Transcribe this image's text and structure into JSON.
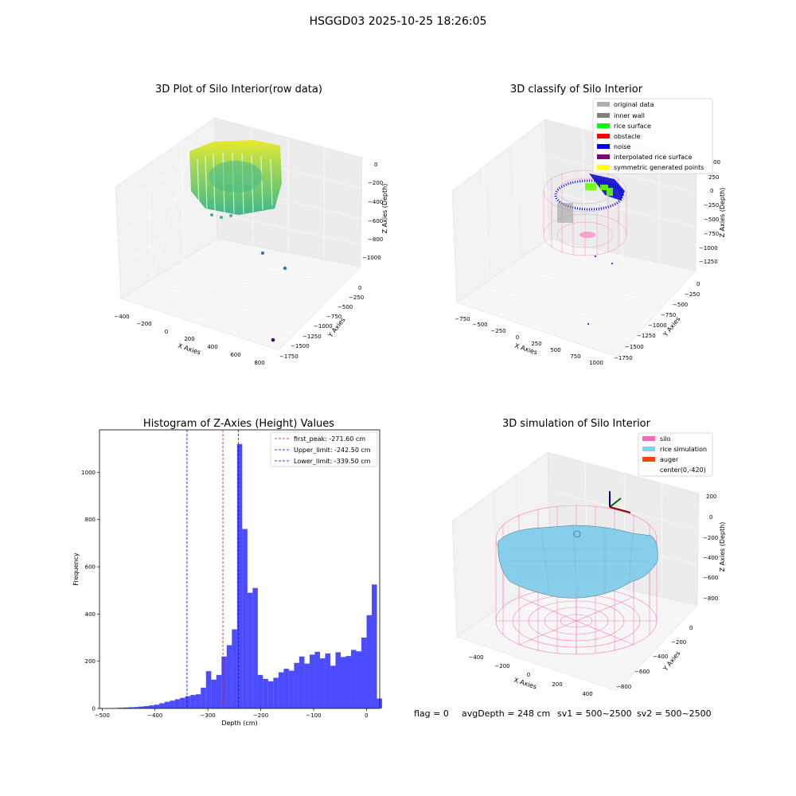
{
  "suptitle": "HSGGD03 2025-10-25 18:26:05",
  "panels": {
    "raw": {
      "title": "3D Plot of Silo Interior(row data)",
      "xlabel": "X Axies",
      "ylabel": "Y Axies",
      "zlabel": "Z Axies (Depth)",
      "xticks": [
        "−400",
        "−200",
        "0",
        "200",
        "400",
        "600",
        "800"
      ],
      "yticks": [
        "0",
        "−250",
        "−500",
        "−750",
        "−1000",
        "−1250",
        "−1500",
        "−1750"
      ],
      "zticks": [
        "0",
        "−200",
        "−400",
        "−600",
        "−800",
        "−1000"
      ]
    },
    "classify": {
      "title": "3D classify of Silo Interior",
      "xlabel": "X Axies",
      "ylabel": "Y Axies",
      "zlabel": "Z Axies (Depth)",
      "xticks": [
        "−750",
        "−500",
        "−250",
        "0",
        "250",
        "500",
        "750",
        "1000"
      ],
      "yticks": [
        "0",
        "−250",
        "−500",
        "−750",
        "−1000",
        "−1250",
        "−1500",
        "−1750"
      ],
      "zticks": [
        "250",
        "0",
        "−250",
        "−500",
        "−750",
        "−1000",
        "−1250"
      ],
      "ztick_partial": "00",
      "legend": [
        {
          "label": "original data",
          "color": "#b0b0b0"
        },
        {
          "label": "inner wall",
          "color": "#808080"
        },
        {
          "label": "rice surface",
          "color": "#00ff00"
        },
        {
          "label": "obstacle",
          "color": "#ff0000"
        },
        {
          "label": "noise",
          "color": "#0000ff"
        },
        {
          "label": "interpolated rice surface",
          "color": "#800080"
        },
        {
          "label": "symmetric generated points",
          "color": "#ffff00"
        }
      ]
    },
    "simulation": {
      "title": "3D simulation of Silo Interior",
      "xlabel": "X Axies",
      "ylabel": "Y Axies",
      "zlabel": "Z Axies (Depth)",
      "xticks": [
        "−400",
        "−200",
        "0",
        "200",
        "400"
      ],
      "yticks": [
        "0",
        "−200",
        "−400",
        "−600",
        "−800"
      ],
      "zticks": [
        "200",
        "0",
        "−200",
        "−400",
        "−600",
        "−800"
      ],
      "legend": [
        {
          "label": "silo",
          "color": "#ff69b4"
        },
        {
          "label": "rice simulation",
          "color": "#87ceeb"
        },
        {
          "label": "auger",
          "color": "#ff4500"
        },
        {
          "label": "center(0,-420)",
          "color": "#ffffff"
        }
      ]
    }
  },
  "info": {
    "flag": "flag = 0",
    "avg": "avgDepth = 248 cm",
    "sv1": "sv1 = 500~2500",
    "sv2": "sv2 = 500~2500"
  },
  "chart_data": {
    "type": "bar",
    "title": "Histogram of Z-Axies (Height) Values",
    "xlabel": "Depth (cm)",
    "ylabel": "Frequency",
    "xlim": [
      -505,
      25
    ],
    "ylim": [
      0,
      1180
    ],
    "bar_color": "#0000ff",
    "bin_width": 9.8,
    "bin_start": -480,
    "values": [
      2,
      3,
      4,
      5,
      6,
      8,
      10,
      13,
      16,
      22,
      28,
      33,
      39,
      45,
      52,
      57,
      60,
      88,
      158,
      122,
      142,
      220,
      268,
      335,
      1120,
      760,
      490,
      510,
      142,
      125,
      115,
      130,
      153,
      168,
      160,
      193,
      220,
      190,
      228,
      240,
      212,
      233,
      181,
      238,
      218,
      222,
      248,
      242,
      300,
      395,
      525,
      42
    ],
    "xticks": [
      -500,
      -400,
      -300,
      -200,
      -100,
      0
    ],
    "xtick_labels": [
      "−500",
      "−400",
      "−300",
      "−200",
      "−100",
      "0"
    ],
    "yticks": [
      0,
      200,
      400,
      600,
      800,
      1000
    ],
    "vlines": [
      {
        "x": -271.6,
        "color": "#ff0000",
        "label": "first_peak: -271.60 cm"
      },
      {
        "x": -242.5,
        "color": "#0000ff",
        "label": "Upper_limit: -242.50 cm"
      },
      {
        "x": -339.5,
        "color": "#0000ff",
        "label": "Lower_limit: -339.50 cm"
      }
    ],
    "legend_position": "top-right",
    "grid": false
  }
}
